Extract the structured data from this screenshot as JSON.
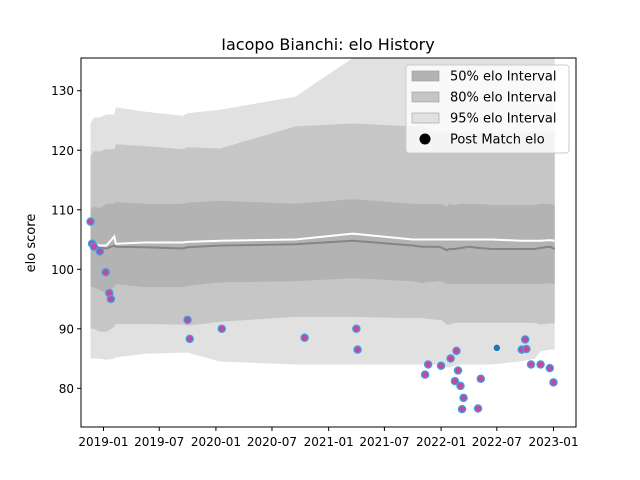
{
  "chart_data": {
    "type": "line",
    "title": "Iacopo Bianchi: elo History",
    "xlabel": "",
    "ylabel": "elo score",
    "xlim": [
      "2018-10-20",
      "2023-03-15"
    ],
    "ylim": [
      73.5,
      135.5
    ],
    "grid": false,
    "legend_position": "top-right",
    "x_ticks": [
      "2019-01",
      "2019-07",
      "2020-01",
      "2020-07",
      "2021-01",
      "2021-07",
      "2022-01",
      "2022-07",
      "2023-01"
    ],
    "y_ticks": [
      80,
      90,
      100,
      110,
      120,
      130
    ],
    "legend": [
      {
        "label": "50% elo Interval",
        "kind": "patch",
        "color": "#b3b3b3"
      },
      {
        "label": "80% elo Interval",
        "kind": "patch",
        "color": "#c6c6c6"
      },
      {
        "label": "95% elo Interval",
        "kind": "patch",
        "color": "#e1e1e1"
      },
      {
        "label": "Post Match elo",
        "kind": "marker",
        "color": "#000000"
      }
    ],
    "bands": {
      "dates": [
        "2018-11-20",
        "2018-12-01",
        "2018-12-20",
        "2019-01-10",
        "2019-02-05",
        "2019-02-10",
        "2019-05-15",
        "2019-09-15",
        "2019-10-01",
        "2020-01-15",
        "2020-09-15",
        "2021-03-20",
        "2021-10-01",
        "2021-11-01",
        "2021-12-20",
        "2022-01-01",
        "2022-01-20",
        "2022-01-28",
        "2022-02-15",
        "2022-03-10",
        "2022-04-01",
        "2022-05-01",
        "2022-06-15",
        "2022-09-15",
        "2022-11-01",
        "2022-11-20",
        "2022-12-20",
        "2023-01-05"
      ],
      "p95_upper": [
        124.5,
        125.5,
        125.5,
        126.0,
        126.0,
        127.2,
        126.5,
        125.8,
        126.2,
        126.8,
        129.0,
        135.5,
        135.5,
        135.5,
        135.5,
        135.5,
        135.5,
        135.5,
        135.5,
        135.5,
        135.5,
        135.5,
        135.5,
        135.5,
        135.5,
        135.5,
        135.5,
        135.5
      ],
      "p80_upper": [
        119.0,
        119.8,
        119.8,
        120.2,
        120.2,
        121.0,
        120.7,
        120.2,
        120.5,
        120.3,
        124.0,
        124.5,
        124.0,
        124.0,
        123.0,
        123.0,
        123.0,
        123.0,
        123.0,
        123.0,
        123.0,
        123.0,
        123.0,
        123.0,
        123.0,
        123.0,
        123.0,
        123.0
      ],
      "p50_upper": [
        110.0,
        110.5,
        110.3,
        111.0,
        111.0,
        111.3,
        111.0,
        111.0,
        111.2,
        111.5,
        111.0,
        111.8,
        111.0,
        111.0,
        111.0,
        111.0,
        110.5,
        111.0,
        110.8,
        111.0,
        111.0,
        111.0,
        110.8,
        110.8,
        110.8,
        111.0,
        111.0,
        110.8
      ],
      "p50_lower": [
        97.0,
        97.0,
        96.5,
        96.0,
        97.0,
        97.5,
        97.0,
        97.0,
        97.2,
        97.8,
        98.0,
        98.5,
        98.0,
        97.7,
        98.0,
        98.0,
        97.5,
        97.5,
        97.5,
        97.5,
        97.5,
        97.5,
        97.5,
        97.5,
        97.5,
        97.5,
        97.7,
        97.5
      ],
      "p80_lower": [
        90.0,
        90.0,
        89.5,
        89.5,
        90.3,
        90.8,
        90.8,
        90.7,
        90.5,
        91.2,
        92.0,
        92.0,
        91.8,
        91.8,
        91.5,
        91.5,
        90.7,
        90.7,
        91.0,
        91.0,
        91.0,
        91.0,
        91.0,
        91.0,
        91.0,
        90.7,
        90.9,
        90.9
      ],
      "p95_lower": [
        85.0,
        85.0,
        85.0,
        84.8,
        85.0,
        85.2,
        85.8,
        86.0,
        86.0,
        84.5,
        84.0,
        84.0,
        84.0,
        84.0,
        84.0,
        84.0,
        83.5,
        83.5,
        83.8,
        84.0,
        84.0,
        84.0,
        84.0,
        84.5,
        85.0,
        86.2,
        86.5,
        86.5
      ],
      "mean": [
        104.0,
        104.3,
        104.0,
        104.0,
        105.5,
        104.3,
        104.5,
        104.5,
        104.6,
        104.8,
        105.0,
        106.0,
        105.0,
        105.0,
        105.0,
        105.0,
        105.0,
        105.0,
        105.0,
        105.0,
        105.0,
        105.0,
        105.0,
        104.8,
        104.8,
        104.8,
        104.9,
        104.8
      ],
      "median": [
        103.5,
        104.0,
        103.6,
        103.5,
        104.0,
        103.8,
        103.7,
        103.5,
        103.7,
        104.0,
        104.2,
        104.8,
        104.0,
        103.8,
        103.8,
        103.7,
        103.2,
        103.4,
        103.4,
        103.6,
        103.8,
        103.6,
        103.4,
        103.4,
        103.4,
        103.6,
        103.8,
        103.4
      ]
    },
    "series": [
      {
        "values": [
          {
            "x": "2018-11-20",
            "y": 108.0
          },
          {
            "x": "2018-11-25",
            "y": 104.3
          },
          {
            "x": "2018-12-01",
            "y": 103.8
          },
          {
            "x": "2018-12-20",
            "y": 103.0
          },
          {
            "x": "2019-01-08",
            "y": 99.5
          },
          {
            "x": "2019-01-20",
            "y": 96.0
          },
          {
            "x": "2019-01-25",
            "y": 95.0
          },
          {
            "x": "2019-10-01",
            "y": 91.5
          },
          {
            "x": "2019-10-08",
            "y": 88.3
          },
          {
            "x": "2020-01-20",
            "y": 90.0
          },
          {
            "x": "2020-10-15",
            "y": 88.5
          },
          {
            "x": "2021-04-01",
            "y": 90.0
          },
          {
            "x": "2021-04-05",
            "y": 86.5
          },
          {
            "x": "2021-11-10",
            "y": 82.3
          },
          {
            "x": "2021-11-20",
            "y": 84.0
          },
          {
            "x": "2022-01-01",
            "y": 83.8
          },
          {
            "x": "2022-02-01",
            "y": 85.0
          },
          {
            "x": "2022-02-15",
            "y": 81.2
          },
          {
            "x": "2022-02-20",
            "y": 86.3
          },
          {
            "x": "2022-02-25",
            "y": 83.0
          },
          {
            "x": "2022-03-05",
            "y": 80.4
          },
          {
            "x": "2022-03-10",
            "y": 76.5
          },
          {
            "x": "2022-03-15",
            "y": 78.4
          },
          {
            "x": "2022-05-01",
            "y": 76.6
          },
          {
            "x": "2022-05-10",
            "y": 81.6
          },
          {
            "x": "2022-07-01",
            "y": 86.8,
            "style": "blue"
          },
          {
            "x": "2022-09-20",
            "y": 86.5
          },
          {
            "x": "2022-10-01",
            "y": 88.2
          },
          {
            "x": "2022-10-05",
            "y": 86.6
          },
          {
            "x": "2022-10-20",
            "y": 84.0
          },
          {
            "x": "2022-11-20",
            "y": 84.0
          },
          {
            "x": "2022-12-20",
            "y": 83.4
          },
          {
            "x": "2023-01-01",
            "y": 81.0
          }
        ]
      }
    ]
  }
}
